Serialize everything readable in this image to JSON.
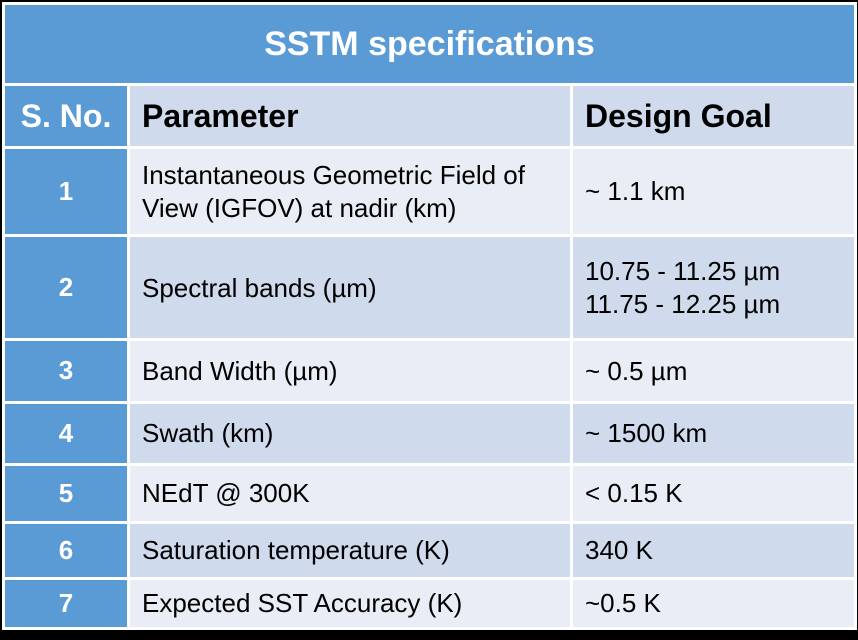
{
  "table": {
    "title": "SSTM specifications",
    "headers": {
      "sno": "S. No.",
      "parameter": "Parameter",
      "goal": "Design Goal"
    },
    "rows": [
      {
        "sno": "1",
        "parameter": "Instantaneous Geometric Field of View (IGFOV) at nadir (km)",
        "goal": [
          "~ 1.1 km"
        ]
      },
      {
        "sno": "2",
        "parameter": "Spectral bands (µm)",
        "goal": [
          "10.75 - 11.25 µm",
          "11.75 - 12.25 µm"
        ]
      },
      {
        "sno": "3",
        "parameter": "Band Width (µm)",
        "goal": [
          "~ 0.5 µm"
        ]
      },
      {
        "sno": "4",
        "parameter": "Swath (km)",
        "goal": [
          "~ 1500 km"
        ]
      },
      {
        "sno": "5",
        "parameter": "NEdT @ 300K",
        "goal": [
          "< 0.15 K"
        ]
      },
      {
        "sno": "6",
        "parameter": "Saturation temperature (K)",
        "goal": [
          "340 K"
        ]
      },
      {
        "sno": "7",
        "parameter": "Expected SST Accuracy (K)",
        "goal": [
          "~0.5 K"
        ]
      }
    ]
  }
}
